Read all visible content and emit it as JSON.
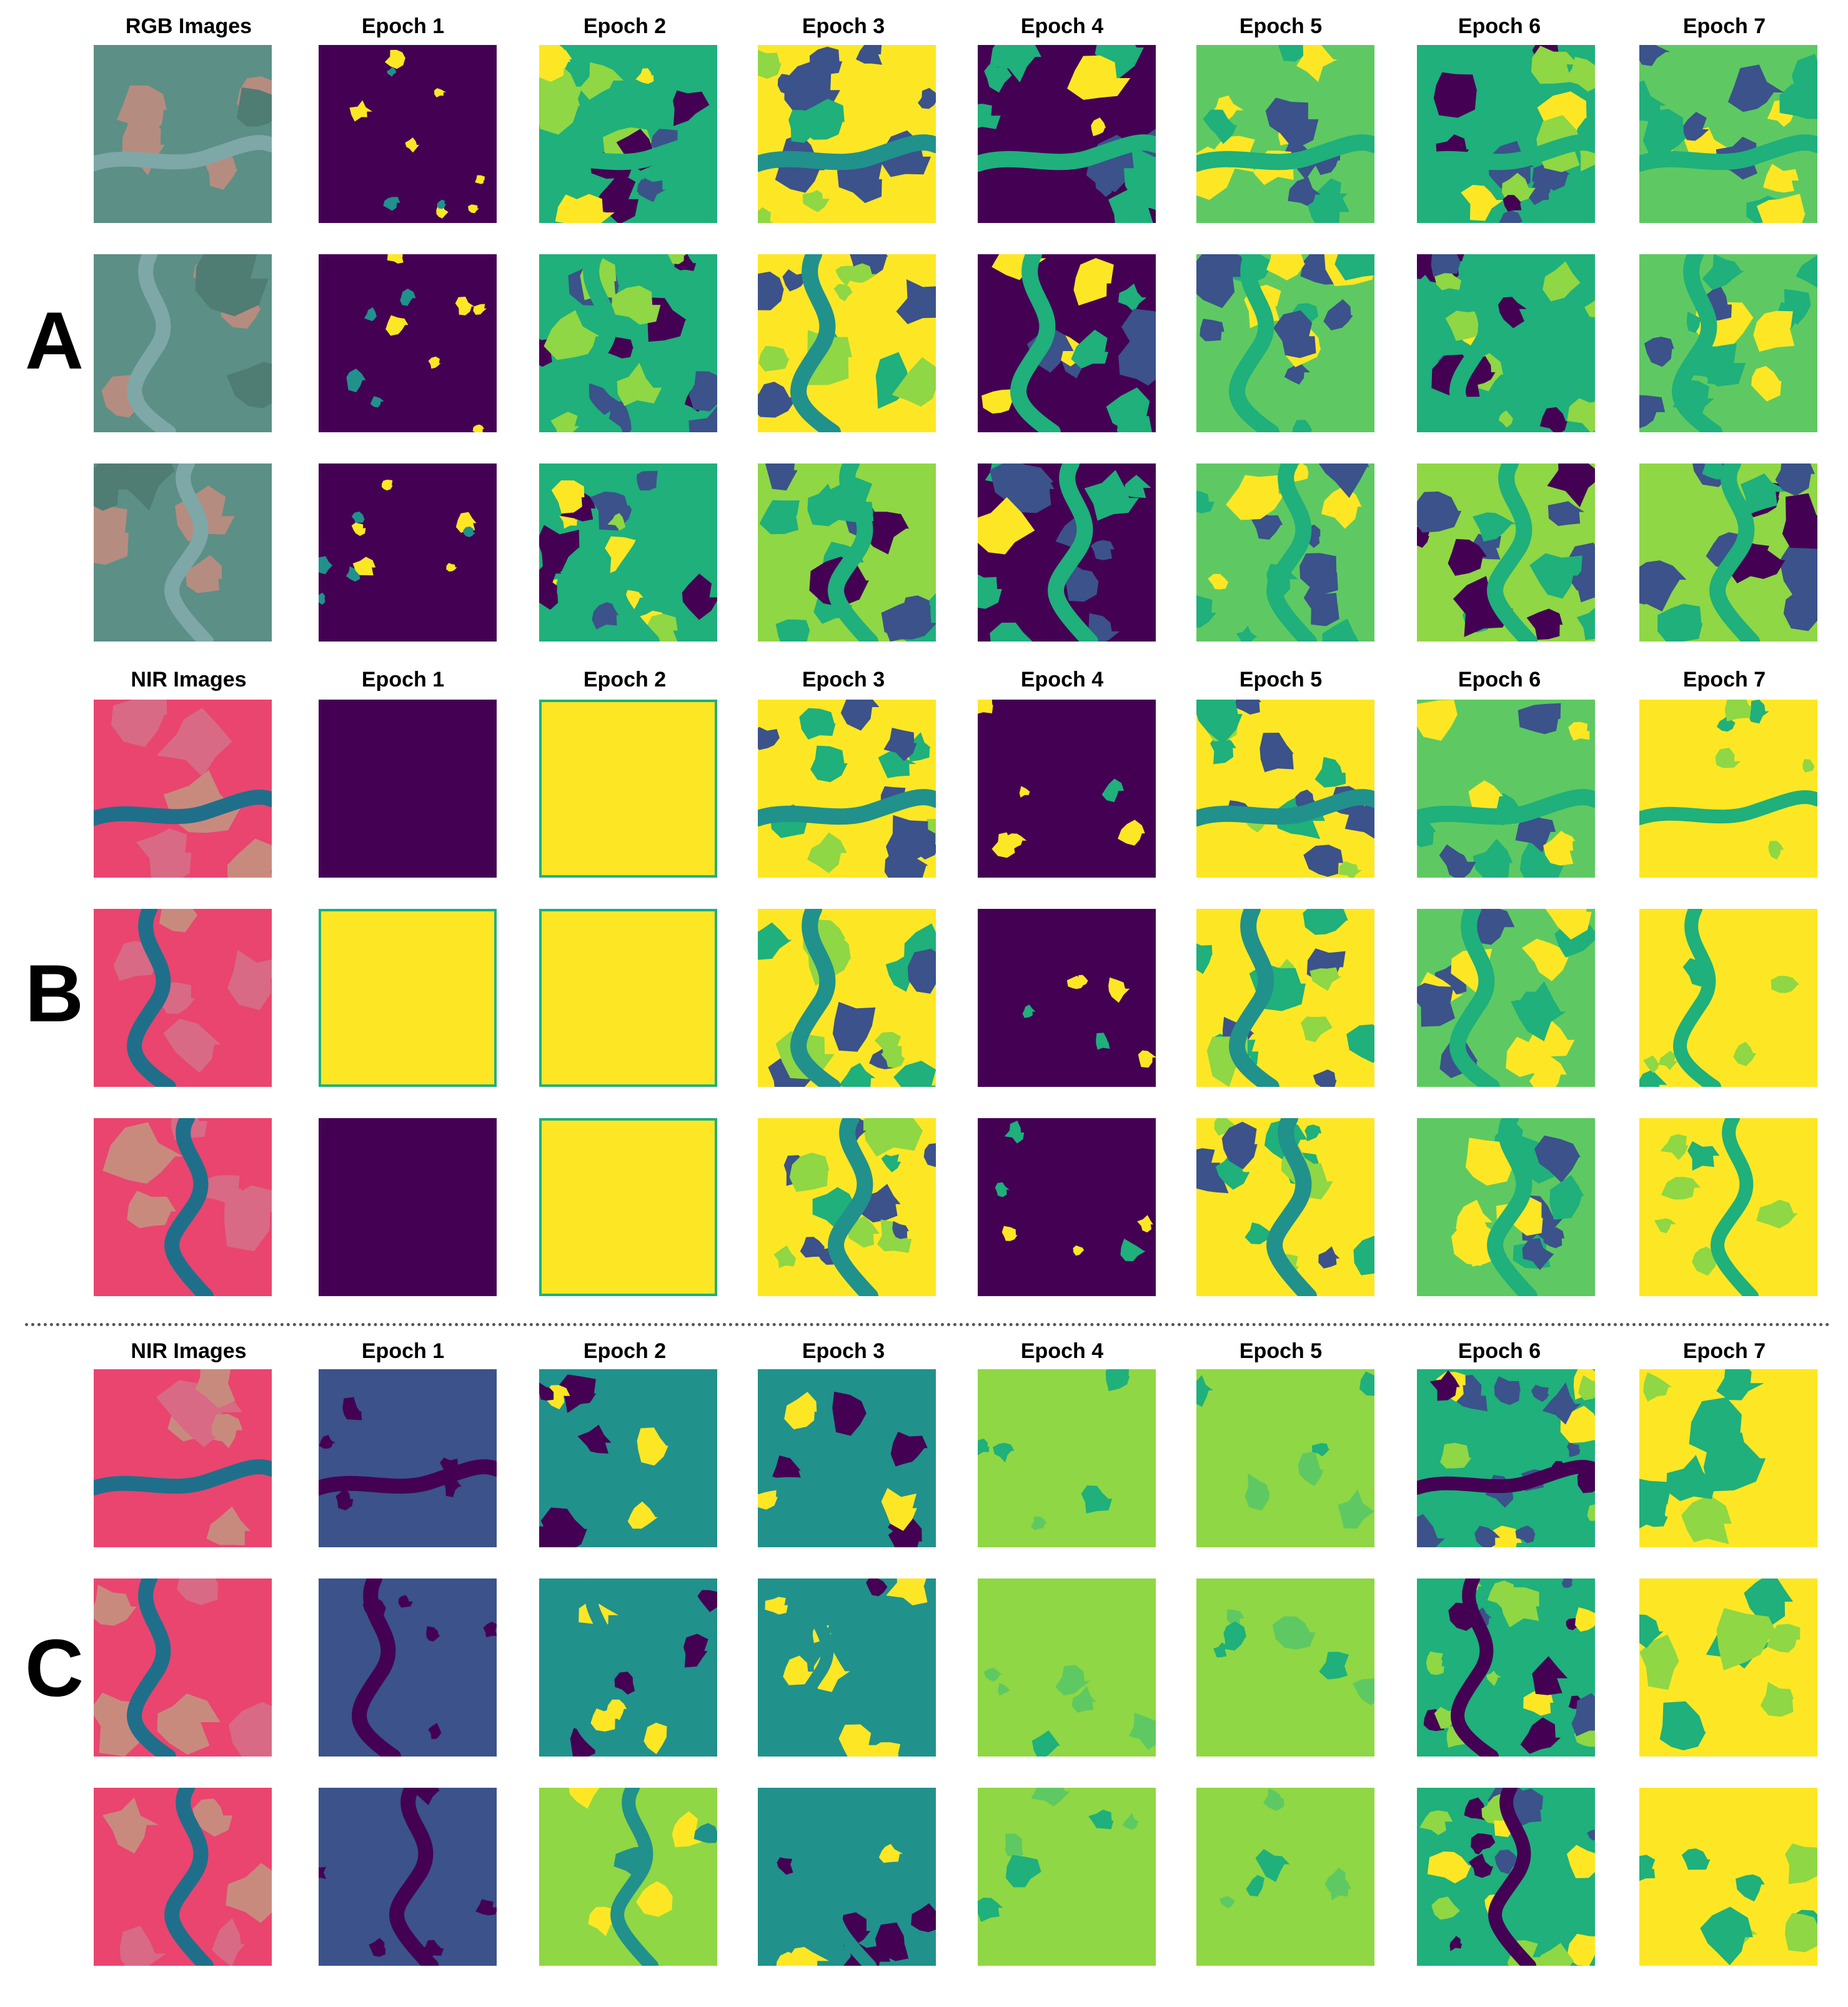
{
  "colors": {
    "viridis": [
      "#440154",
      "#3b528b",
      "#21918c",
      "#1fb07b",
      "#5ec962",
      "#8fd744",
      "#fde725"
    ],
    "nir": {
      "base": "#e9456f",
      "water": "#1f6f8b",
      "soil": "#c98a7e",
      "veg": "#d86a85"
    },
    "rgb": {
      "base": "#5c8f86",
      "water": "#7ea7a8",
      "soil": "#b58c80",
      "veg": "#4f7c73"
    }
  },
  "sections": [
    {
      "letter": "A",
      "headers": [
        "RGB Images",
        "Epoch 1",
        "Epoch 2",
        "Epoch 3",
        "Epoch 4",
        "Epoch 5",
        "Epoch 6",
        "Epoch 7"
      ],
      "input": "rgb",
      "rows": [
        [
          "raw",
          "dark-sparse",
          "mixed-b",
          "mixed-y",
          "dark-mixed",
          "mixed-g",
          "mixed-b",
          "mixed-g"
        ],
        [
          "raw",
          "dark-sparse",
          "mixed-b",
          "mixed-y",
          "dark-mixed",
          "mixed-g",
          "mixed-b",
          "mixed-g"
        ],
        [
          "raw",
          "dark-sparse",
          "mixed-b",
          "mixed-d",
          "dark-mixed",
          "mixed-g",
          "mixed-d",
          "mixed-d"
        ]
      ]
    },
    {
      "letter": "B",
      "headers": [
        "NIR Images",
        "Epoch 1",
        "Epoch 2",
        "Epoch 3",
        "Epoch 4",
        "Epoch 5",
        "Epoch 6",
        "Epoch 7"
      ],
      "input": "nir",
      "rows": [
        [
          "raw",
          "solid-dark",
          "solid-yellow",
          "mixed-y",
          "dark-few",
          "mixed-y",
          "mixed-g",
          "yellow-teal"
        ],
        [
          "raw",
          "solid-yellow",
          "solid-yellow",
          "mixed-y",
          "dark-few",
          "mixed-y",
          "mixed-g",
          "yellow-teal"
        ],
        [
          "raw",
          "solid-dark",
          "solid-yellow",
          "mixed-y",
          "dark-few",
          "mixed-y",
          "mixed-g",
          "yellow-teal"
        ]
      ]
    },
    {
      "letter": "C",
      "headers": [
        "NIR Images",
        "Epoch 1",
        "Epoch 2",
        "Epoch 3",
        "Epoch 4",
        "Epoch 5",
        "Epoch 6",
        "Epoch 7"
      ],
      "input": "nir",
      "rows": [
        [
          "raw",
          "blue-dark",
          "teal-yellow",
          "teal-yellow",
          "green-flat",
          "green-flat",
          "busy",
          "yellow-blur"
        ],
        [
          "raw",
          "blue-dark",
          "teal-yellow",
          "teal-yellow",
          "green-flat",
          "green-flat",
          "busy",
          "yellow-blur"
        ],
        [
          "raw",
          "blue-dark",
          "lime-teal",
          "teal-yellow",
          "green-flat",
          "green-flat",
          "busy",
          "yellow-blur"
        ]
      ]
    }
  ]
}
